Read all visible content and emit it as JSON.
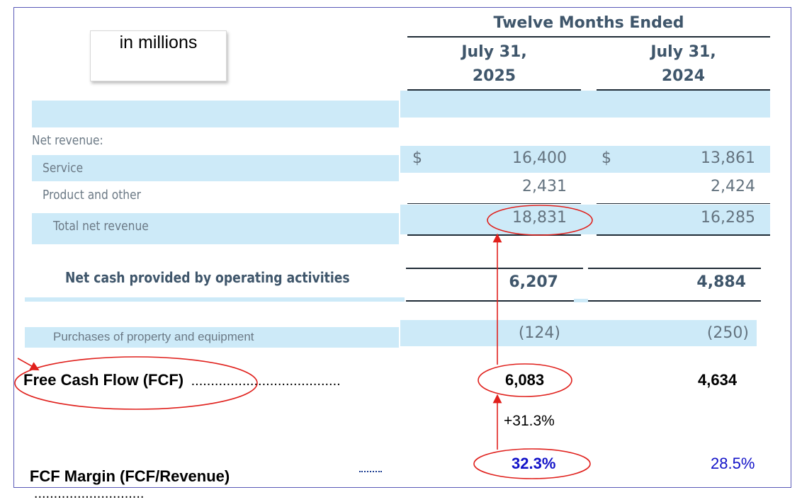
{
  "unit_note": "in millions",
  "header": {
    "period": "Twelve Months Ended",
    "col1_line1": "July 31,",
    "col1_line2": "2025",
    "col2_line1": "July 31,",
    "col2_line2": "2024"
  },
  "rows": {
    "net_revenue_label": "Net revenue:",
    "service": {
      "label": "Service",
      "dollar1": "$",
      "v2025": "16,400",
      "dollar2": "$",
      "v2024": "13,861"
    },
    "product": {
      "label": "Product and other",
      "v2025": "2,431",
      "v2024": "2,424"
    },
    "total": {
      "label": "Total net revenue",
      "v2025": "18,831",
      "v2024": "16,285"
    },
    "ocf": {
      "label": "Net cash provided by operating activities",
      "v2025": "6,207",
      "v2024": "4,884"
    },
    "capex": {
      "label": "Purchases of property and equipment",
      "v2025": "(124)",
      "v2024": "(250)"
    },
    "fcf": {
      "label": "Free Cash Flow (FCF)",
      "dots": "......................................",
      "v2025": "6,083",
      "v2024": "4,634"
    },
    "growth": "+31.3%",
    "margin": {
      "label": "FCF  Margin (FCF/Revenue)",
      "dots": "............................",
      "v2025": "32.3%",
      "v2024": "28.5%"
    }
  },
  "colors": {
    "band": "#cdeaf8",
    "annotation": "#e0201c",
    "margin_blue": "#1212c8",
    "header_text": "#3f566b"
  }
}
